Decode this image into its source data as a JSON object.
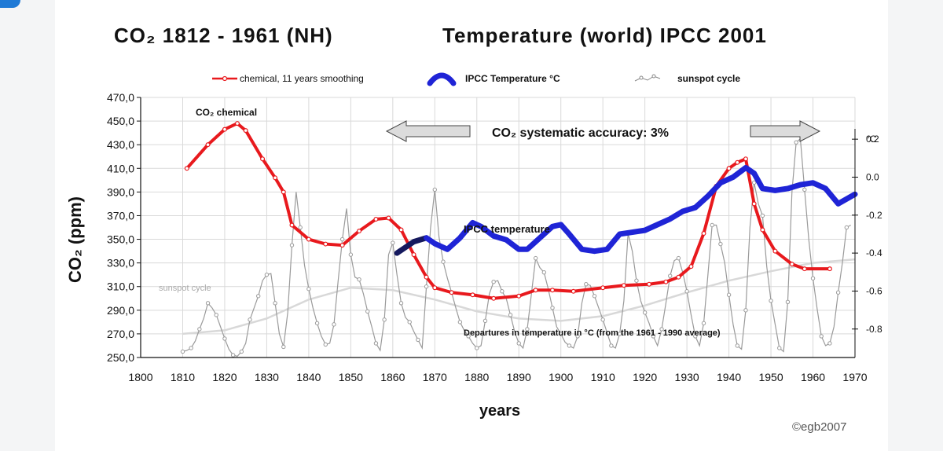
{
  "title_left": "CO₂ 1812 - 1961 (NH)",
  "title_right": "Temperature (world) IPCC 2001",
  "watermark": "©egb2007",
  "colors": {
    "co2": "#e8191d",
    "co2_marker_fill": "#ffffff",
    "temp": "#1f24d6",
    "temp_early": "#15195e",
    "sunspot": "#9a9a9a",
    "sunspot_cycle": "#d8d8d8",
    "grid": "#d9d9d9",
    "arrow_fill": "#dcdcdc"
  },
  "chart_data": {
    "type": "line",
    "xlabel": "years",
    "ylabel": "CO₂ (ppm)",
    "y2label": "°C",
    "xlim": [
      1800,
      1970
    ],
    "ylim": [
      250,
      470
    ],
    "y2lim": [
      -0.95,
      0.42
    ],
    "x_ticks": [
      "1800",
      "1810",
      "1820",
      "1830",
      "1840",
      "1850",
      "1860",
      "1870",
      "1880",
      "1890",
      "1900",
      "1910",
      "1920",
      "1930",
      "1940",
      "1950",
      "1960",
      "1970"
    ],
    "y_ticks": [
      "470,0",
      "450,0",
      "430,0",
      "410,0",
      "390,0",
      "370,0",
      "350,0",
      "330,0",
      "310,0",
      "290,0",
      "270,0",
      "250,0"
    ],
    "y2_ticks": [
      "0.2",
      "0.0",
      "-0.2",
      "-0.4",
      "-0.6",
      "-0.8"
    ],
    "y2_tick_values": [
      0.2,
      0.0,
      -0.2,
      -0.4,
      -0.6,
      -0.8
    ],
    "legend": [
      {
        "key": "co2",
        "label": "chemical, 11 years smoothing"
      },
      {
        "key": "temp",
        "label": "IPCC Temperature °C"
      },
      {
        "key": "sunspot",
        "label": "sunspot cycle"
      }
    ],
    "annotations": {
      "co2_label": "CO₂ chemical",
      "accuracy": "CO₂ systematic accuracy: 3%",
      "ipcc_label": "IPCC temperature",
      "departures": "Departures in temperature in °C (from the 1961 - 1990 average)",
      "sunspot_label": "sunspot cycle"
    },
    "series": [
      {
        "name": "chemical, 11 years smoothing",
        "axis": "left",
        "x": [
          1811,
          1816,
          1820,
          1823,
          1825,
          1829,
          1832,
          1834,
          1836,
          1840,
          1844,
          1848,
          1852,
          1856,
          1859,
          1862,
          1865,
          1868,
          1870,
          1874,
          1879,
          1884,
          1890,
          1894,
          1898,
          1903,
          1910,
          1915,
          1921,
          1925,
          1928,
          1931,
          1934,
          1937,
          1940,
          1942,
          1944,
          1946,
          1948,
          1951,
          1955,
          1958,
          1964
        ],
        "y": [
          410,
          430,
          443,
          448,
          442,
          418,
          402,
          390,
          362,
          350,
          346,
          345,
          357,
          367,
          368,
          358,
          337,
          318,
          309,
          305,
          303,
          300,
          302,
          307,
          307,
          306,
          309,
          311,
          312,
          314,
          318,
          327,
          355,
          395,
          410,
          415,
          418,
          380,
          358,
          340,
          329,
          325,
          325
        ]
      },
      {
        "name": "IPCC Temperature °C",
        "axis": "right",
        "x": [
          1861,
          1865,
          1868,
          1870,
          1873,
          1876,
          1879,
          1881,
          1884,
          1887,
          1890,
          1892,
          1895,
          1898,
          1900,
          1902,
          1905,
          1908,
          1911,
          1914,
          1917,
          1920,
          1923,
          1926,
          1929,
          1932,
          1935,
          1938,
          1941,
          1944,
          1946,
          1948,
          1951,
          1954,
          1957,
          1960,
          1963,
          1966,
          1970
        ],
        "y": [
          -0.4,
          -0.34,
          -0.32,
          -0.35,
          -0.38,
          -0.32,
          -0.24,
          -0.26,
          -0.31,
          -0.33,
          -0.38,
          -0.38,
          -0.32,
          -0.26,
          -0.25,
          -0.3,
          -0.38,
          -0.39,
          -0.38,
          -0.3,
          -0.29,
          -0.28,
          -0.25,
          -0.22,
          -0.18,
          -0.16,
          -0.1,
          -0.03,
          0.0,
          0.05,
          0.02,
          -0.06,
          -0.07,
          -0.06,
          -0.04,
          -0.03,
          -0.06,
          -0.14,
          -0.09
        ]
      },
      {
        "name": "sunspot cycle",
        "axis": "left",
        "x": [
          1810,
          1811,
          1812,
          1813,
          1814,
          1815,
          1816,
          1817,
          1818,
          1819,
          1820,
          1821,
          1822,
          1823,
          1824,
          1825,
          1826,
          1827,
          1828,
          1829,
          1830,
          1831,
          1832,
          1833,
          1834,
          1835,
          1836,
          1837,
          1838,
          1839,
          1840,
          1841,
          1842,
          1843,
          1844,
          1845,
          1846,
          1847,
          1848,
          1849,
          1850,
          1851,
          1852,
          1853,
          1854,
          1855,
          1856,
          1857,
          1858,
          1859,
          1860,
          1861,
          1862,
          1863,
          1864,
          1865,
          1866,
          1867,
          1868,
          1869,
          1870,
          1871,
          1872,
          1873,
          1874,
          1875,
          1876,
          1877,
          1878,
          1879,
          1880,
          1881,
          1882,
          1883,
          1884,
          1885,
          1886,
          1887,
          1888,
          1889,
          1890,
          1891,
          1892,
          1893,
          1894,
          1895,
          1896,
          1897,
          1898,
          1899,
          1900,
          1901,
          1902,
          1903,
          1904,
          1905,
          1906,
          1907,
          1908,
          1909,
          1910,
          1911,
          1912,
          1913,
          1914,
          1915,
          1916,
          1917,
          1918,
          1919,
          1920,
          1921,
          1922,
          1923,
          1924,
          1925,
          1926,
          1927,
          1928,
          1929,
          1930,
          1931,
          1932,
          1933,
          1934,
          1935,
          1936,
          1937,
          1938,
          1939,
          1940,
          1941,
          1942,
          1943,
          1944,
          1945,
          1946,
          1947,
          1948,
          1949,
          1950,
          1951,
          1952,
          1953,
          1954,
          1955,
          1956,
          1957,
          1958,
          1959,
          1960,
          1961,
          1962,
          1963,
          1964,
          1965,
          1966,
          1967,
          1968,
          1969
        ],
        "y": [
          255,
          256,
          258,
          264,
          274,
          283,
          296,
          292,
          286,
          276,
          266,
          257,
          252,
          251,
          255,
          262,
          282,
          292,
          302,
          315,
          320,
          321,
          296,
          270,
          259,
          288,
          345,
          390,
          360,
          328,
          308,
          292,
          279,
          268,
          261,
          262,
          278,
          315,
          350,
          376,
          337,
          318,
          316,
          304,
          289,
          276,
          262,
          256,
          282,
          337,
          347,
          320,
          296,
          284,
          280,
          272,
          265,
          258,
          310,
          360,
          392,
          352,
          331,
          317,
          305,
          292,
          280,
          273,
          268,
          262,
          258,
          260,
          281,
          304,
          314,
          315,
          306,
          300,
          286,
          272,
          262,
          258,
          274,
          304,
          334,
          326,
          322,
          308,
          292,
          276,
          270,
          263,
          260,
          258,
          268,
          296,
          312,
          311,
          302,
          292,
          282,
          271,
          260,
          258,
          270,
          298,
          355,
          340,
          315,
          298,
          288,
          279,
          268,
          260,
          274,
          296,
          319,
          332,
          334,
          322,
          306,
          286,
          268,
          260,
          279,
          320,
          362,
          362,
          346,
          330,
          303,
          278,
          260,
          257,
          290,
          360,
          398,
          380,
          370,
          327,
          298,
          278,
          258,
          255,
          297,
          390,
          432,
          435,
          392,
          350,
          317,
          291,
          268,
          260,
          262,
          276,
          305,
          330,
          360,
          362
        ]
      },
      {
        "name": "sunspot cycle trend",
        "axis": "left",
        "x": [
          1810,
          1820,
          1830,
          1840,
          1850,
          1860,
          1870,
          1880,
          1890,
          1900,
          1910,
          1920,
          1930,
          1940,
          1950,
          1960,
          1970
        ],
        "y": [
          270,
          273,
          283,
          299,
          309,
          307,
          299,
          289,
          283,
          281,
          285,
          294,
          305,
          315,
          323,
          330,
          333
        ]
      }
    ]
  }
}
